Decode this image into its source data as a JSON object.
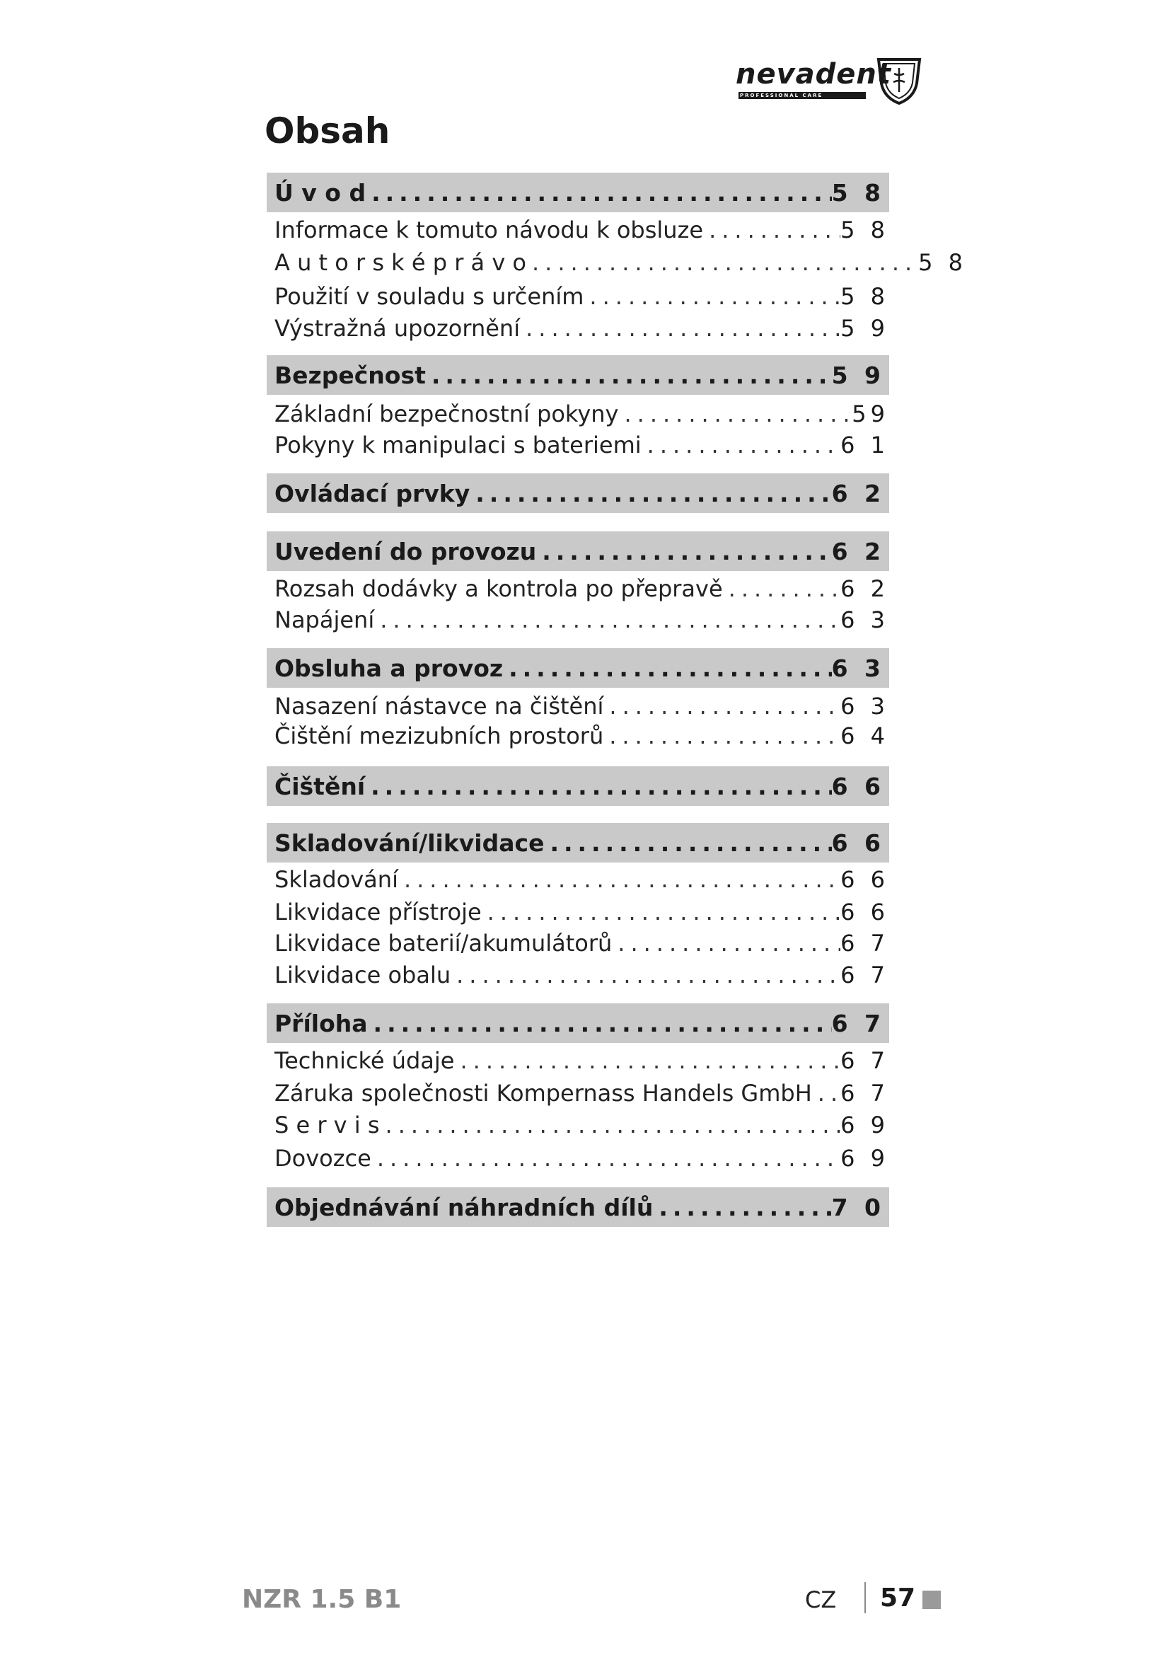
{
  "brand": {
    "name": "nevadent",
    "tagline": "PROFESSIONAL CARE"
  },
  "title": "Obsah",
  "toc": [
    {
      "kind": "section",
      "label": "Ú v o d",
      "page": "5 8"
    },
    {
      "kind": "entry",
      "label": "Informace k tomuto návodu k obsluze",
      "page": "5 8"
    },
    {
      "kind": "entry",
      "label": "A u t o r s k é   p r á v o",
      "page": "5 8"
    },
    {
      "kind": "entry",
      "label": "Použití v souladu s určením",
      "page": "5 8"
    },
    {
      "kind": "entry",
      "label": "Výstražná upozornění",
      "page": "5 9"
    },
    {
      "kind": "section",
      "label": "Bezpečnost",
      "page": "5 9"
    },
    {
      "kind": "entry",
      "label": "Základní bezpečnostní pokyny",
      "page": "59"
    },
    {
      "kind": "entry",
      "label": "Pokyny k manipulaci s bateriemi",
      "page": "6 1"
    },
    {
      "kind": "section",
      "label": "Ovládací prvky",
      "page": "6 2"
    },
    {
      "kind": "section",
      "label": "Uvedení do provozu",
      "page": "6 2"
    },
    {
      "kind": "entry",
      "label": "Rozsah dodávky a kontrola po přepravě",
      "page": "6 2"
    },
    {
      "kind": "entry",
      "label": "Napájení",
      "page": "6 3"
    },
    {
      "kind": "section",
      "label": "Obsluha a provoz",
      "page": "6 3"
    },
    {
      "kind": "entry",
      "label": "Nasazení nástavce na čištění",
      "page": "6 3"
    },
    {
      "kind": "entry",
      "label": "Čištění mezizubních prostorů",
      "page": "6 4"
    },
    {
      "kind": "section",
      "label": "Čištění",
      "page": "6 6"
    },
    {
      "kind": "section",
      "label": "Skladování/likvidace",
      "page": "6 6"
    },
    {
      "kind": "entry",
      "label": "Skladování",
      "page": "6 6"
    },
    {
      "kind": "entry",
      "label": "Likvidace přístroje",
      "page": "6 6"
    },
    {
      "kind": "entry",
      "label": "Likvidace baterií/akumulátorů",
      "page": "6 7"
    },
    {
      "kind": "entry",
      "label": "Likvidace obalu",
      "page": "6 7"
    },
    {
      "kind": "section",
      "label": "Příloha",
      "page": "6 7"
    },
    {
      "kind": "entry",
      "label": "Technické údaje",
      "page": "6 7"
    },
    {
      "kind": "entry",
      "label": "Záruka společnosti Kompernass Handels GmbH",
      "page": "6 7"
    },
    {
      "kind": "entry",
      "label": "S e r v i s",
      "page": "6 9"
    },
    {
      "kind": "entry",
      "label": "Dovozce",
      "page": "6 9"
    },
    {
      "kind": "section",
      "label": "Objednávání náhradních dílů",
      "page": "7 0"
    }
  ],
  "footer": {
    "model": "NZR 1.5 B1",
    "language": "CZ",
    "page_number": "57"
  }
}
